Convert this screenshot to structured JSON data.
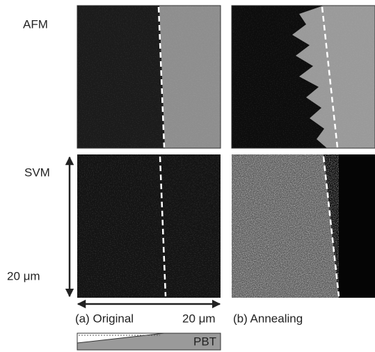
{
  "row_labels": {
    "afm": "AFM",
    "svm": "SVM"
  },
  "vertical_scale": "20 μm",
  "horizontal_scale": "20 μm",
  "panels": {
    "a": "(a) Original",
    "b": "(b) Annealing"
  },
  "gradient_label": "PBT"
}
